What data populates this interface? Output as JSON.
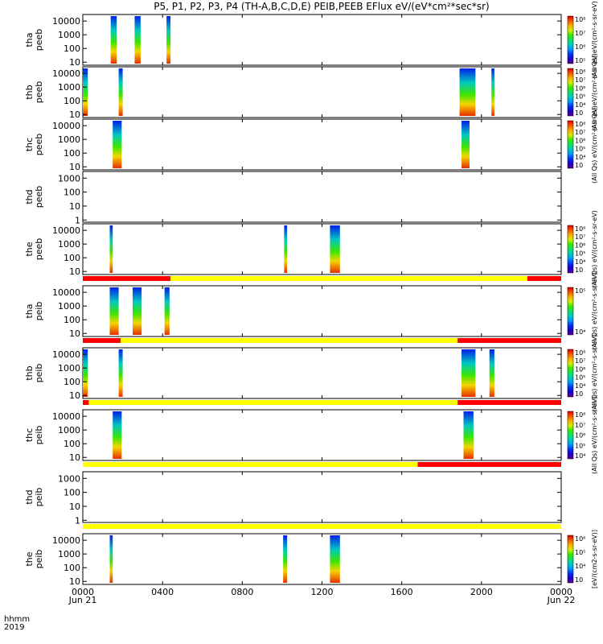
{
  "title": "P5, P1, P2, P3, P4 (TH-A,B,C,D,E) PEIB,PEEB EFlux eV/(eV*cm²*sec*sr)",
  "time_axis": {
    "row1_label": "hhmm",
    "row2_label": "2019",
    "ticks": [
      {
        "label": "0000",
        "sub": "Jun 21",
        "hour": 0
      },
      {
        "label": "0400",
        "sub": "",
        "hour": 4
      },
      {
        "label": "0800",
        "sub": "",
        "hour": 8
      },
      {
        "label": "1200",
        "sub": "",
        "hour": 12
      },
      {
        "label": "1600",
        "sub": "",
        "hour": 16
      },
      {
        "label": "2000",
        "sub": "",
        "hour": 20
      },
      {
        "label": "0000",
        "sub": "Jun 22",
        "hour": 24
      }
    ]
  },
  "colors": {
    "status_red": "#ff0000",
    "status_yellow": "#ffff00",
    "data_gap_black": "#000000"
  },
  "chart_data": {
    "type": "heatmap",
    "x_unit": "hours since 2019-06-21 00:00 UT",
    "xlim": [
      0,
      24
    ],
    "y_scale": "log",
    "panels": [
      {
        "id": "tha-peeb",
        "label": [
          "tha",
          "peeb"
        ],
        "y_ticks": [
          "10",
          "100",
          "1000",
          "10000"
        ],
        "ylim": [
          6,
          30000
        ],
        "has_colorbar": true,
        "cbar_ticks": [
          "10⁵",
          "10⁶",
          "10⁷",
          "10⁸"
        ],
        "cbar_label": "(All Qs) eV/(cm²-s-sr-eV)",
        "bursts": [
          [
            1.4,
            1.7
          ],
          [
            2.6,
            2.9
          ],
          [
            4.2,
            4.4
          ]
        ]
      },
      {
        "id": "thb-peeb",
        "label": [
          "thb",
          "peeb"
        ],
        "y_ticks": [
          "10",
          "100",
          "1000",
          "10000"
        ],
        "ylim": [
          6,
          30000
        ],
        "has_colorbar": true,
        "cbar_ticks": [
          "10⁳",
          "10⁴",
          "10⁵",
          "10⁶",
          "10⁷",
          "10⁸"
        ],
        "cbar_label": "(All Qs) eV/(cm²-s-sr-eV)",
        "bursts": [
          [
            0.0,
            0.25
          ],
          [
            1.8,
            2.0
          ],
          [
            18.9,
            19.7
          ],
          [
            20.5,
            20.65
          ]
        ]
      },
      {
        "id": "thc-peeb",
        "label": [
          "thc",
          "peeb"
        ],
        "y_ticks": [
          "10",
          "100",
          "1000",
          "10000"
        ],
        "ylim": [
          6,
          30000
        ],
        "has_colorbar": true,
        "cbar_ticks": [
          "10⁳",
          "10⁴",
          "10⁵",
          "10⁶",
          "10⁷",
          "10⁸"
        ],
        "cbar_label": "(All Qs) eV/(cm²-s-sr-eV)",
        "bursts": [
          [
            1.5,
            1.95
          ],
          [
            19.0,
            19.4
          ]
        ]
      },
      {
        "id": "thd-peeb",
        "label": [
          "thd",
          "peeb"
        ],
        "y_ticks": [
          "1",
          "10",
          "100",
          "1000"
        ],
        "ylim": [
          0.7,
          3000
        ],
        "has_colorbar": false,
        "bursts": []
      },
      {
        "id": "the-peeb",
        "label": [
          "the",
          "peeb"
        ],
        "y_ticks": [
          "10",
          "100",
          "1000",
          "10000"
        ],
        "ylim": [
          6,
          30000
        ],
        "has_colorbar": true,
        "cbar_ticks": [
          "10⁳",
          "10⁴",
          "10⁵",
          "10⁶",
          "10⁷",
          "10⁸"
        ],
        "cbar_label": "(All Qs) eV/(cm²-s-sr-eV)",
        "bursts": [
          [
            1.35,
            1.5
          ],
          [
            10.1,
            10.25
          ],
          [
            12.4,
            12.9
          ]
        ]
      },
      {
        "id": "tha-peib",
        "label": [
          "tha",
          "peib"
        ],
        "y_ticks": [
          "10",
          "100",
          "1000",
          "10000"
        ],
        "ylim": [
          6,
          30000
        ],
        "has_colorbar": true,
        "cbar_ticks": [
          "10⁴",
          "10⁵"
        ],
        "cbar_label": "(All Qs) eV/(cm²-s-sr-eV)",
        "bursts": [
          [
            1.35,
            1.8
          ],
          [
            2.5,
            2.95
          ],
          [
            4.1,
            4.35
          ]
        ]
      },
      {
        "id": "thb-peib",
        "label": [
          "thb",
          "peib"
        ],
        "y_ticks": [
          "10",
          "100",
          "1000",
          "10000"
        ],
        "ylim": [
          6,
          30000
        ],
        "has_colorbar": true,
        "cbar_ticks": [
          "10⁳",
          "10⁴",
          "10⁵",
          "10⁶",
          "10⁷",
          "10⁸"
        ],
        "cbar_label": "(All Qs) eV/(cm²-s-sr-eV)",
        "bursts": [
          [
            0.0,
            0.25
          ],
          [
            1.8,
            2.0
          ],
          [
            19.0,
            19.7
          ],
          [
            20.4,
            20.65
          ]
        ]
      },
      {
        "id": "thc-peib",
        "label": [
          "thc",
          "peib"
        ],
        "y_ticks": [
          "10",
          "100",
          "1000",
          "10000"
        ],
        "ylim": [
          6,
          30000
        ],
        "has_colorbar": true,
        "cbar_ticks": [
          "10⁴",
          "10⁵",
          "10⁶",
          "10⁷",
          "10⁸"
        ],
        "cbar_label": "(All Qs) eV/(cm²-s-sr-eV)",
        "bursts": [
          [
            1.5,
            1.95
          ],
          [
            19.1,
            19.6
          ]
        ]
      },
      {
        "id": "thd-peib",
        "label": [
          "thd",
          "peib"
        ],
        "y_ticks": [
          "1",
          "10",
          "100",
          "1000"
        ],
        "ylim": [
          0.7,
          3000
        ],
        "has_colorbar": false,
        "bursts": []
      },
      {
        "id": "the-peib",
        "label": [
          "the",
          "peib"
        ],
        "y_ticks": [
          "10",
          "100",
          "1000",
          "10000"
        ],
        "ylim": [
          6,
          30000
        ],
        "has_colorbar": true,
        "cbar_ticks": [
          "10⁳",
          "10⁴",
          "10⁵",
          "10⁶"
        ],
        "cbar_label": "[eV/(cm2-s-sr-eV)]",
        "bursts": [
          [
            1.35,
            1.5
          ],
          [
            10.05,
            10.25
          ],
          [
            12.4,
            12.9
          ]
        ]
      }
    ],
    "status_bars": [
      {
        "after_panel": 4,
        "segments": [
          [
            "red",
            0,
            4.4
          ],
          [
            "yellow",
            4.4,
            22.3
          ],
          [
            "red",
            22.3,
            24
          ]
        ]
      },
      {
        "after_panel": 5,
        "segments": [
          [
            "red",
            0,
            1.9
          ],
          [
            "yellow",
            1.9,
            18.8
          ],
          [
            "red",
            18.8,
            24
          ]
        ]
      },
      {
        "after_panel": 6,
        "segments": [
          [
            "red",
            0,
            0.3
          ],
          [
            "yellow",
            0.3,
            18.8
          ],
          [
            "red",
            18.8,
            24
          ]
        ]
      },
      {
        "after_panel": 7,
        "segments": [
          [
            "yellow",
            0,
            16.8
          ],
          [
            "red",
            16.8,
            24
          ]
        ]
      },
      {
        "after_panel": 8,
        "segments": [
          [
            "yellow",
            0,
            0.6
          ],
          [
            "red",
            0.6,
            24
          ],
          [
            "yellow",
            0.6,
            24
          ]
        ]
      }
    ]
  }
}
